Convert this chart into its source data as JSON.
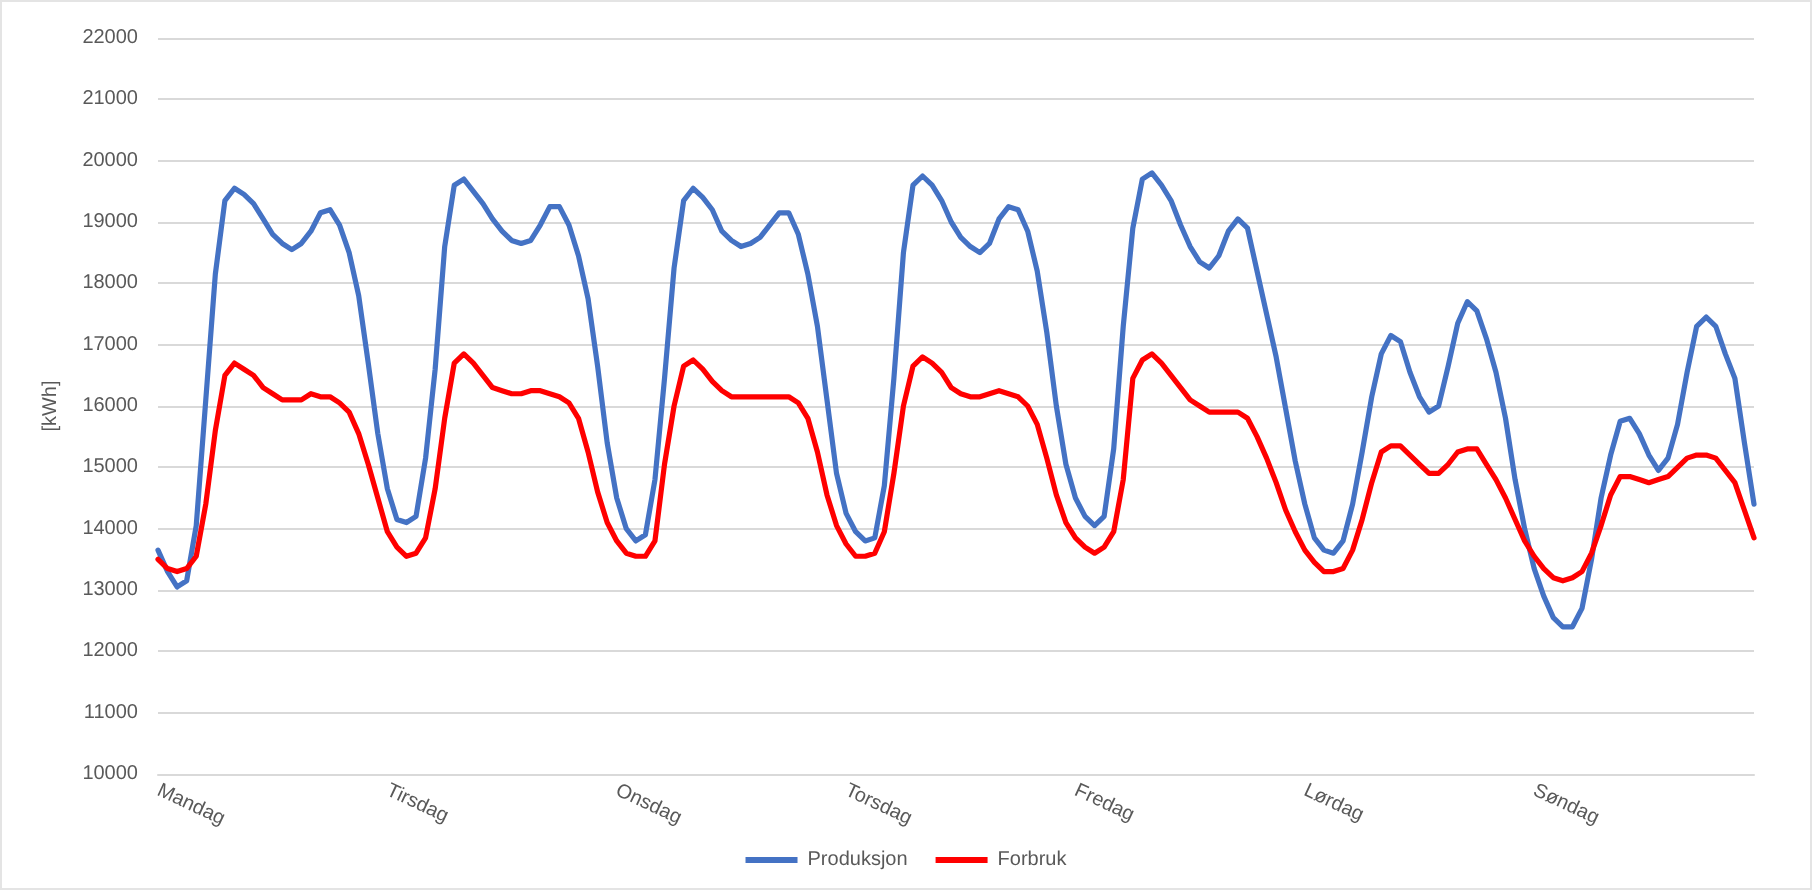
{
  "chart_data": {
    "type": "line",
    "ylabel": "[kWh]",
    "legend": "bottom",
    "grid": "y",
    "marker": "none",
    "ylim": [
      10000,
      22000
    ],
    "yticks": [
      10000,
      11000,
      12000,
      13000,
      14000,
      15000,
      16000,
      17000,
      18000,
      19000,
      20000,
      21000,
      22000
    ],
    "categories": [
      "Mandag",
      null,
      null,
      null,
      null,
      null,
      null,
      null,
      null,
      null,
      null,
      null,
      null,
      null,
      null,
      null,
      null,
      null,
      null,
      null,
      null,
      null,
      null,
      null,
      "Tirsdag",
      null,
      null,
      null,
      null,
      null,
      null,
      null,
      null,
      null,
      null,
      null,
      null,
      null,
      null,
      null,
      null,
      null,
      null,
      null,
      null,
      null,
      null,
      null,
      "Onsdag",
      null,
      null,
      null,
      null,
      null,
      null,
      null,
      null,
      null,
      null,
      null,
      null,
      null,
      null,
      null,
      null,
      null,
      null,
      null,
      null,
      null,
      null,
      null,
      "Torsdag",
      null,
      null,
      null,
      null,
      null,
      null,
      null,
      null,
      null,
      null,
      null,
      null,
      null,
      null,
      null,
      null,
      null,
      null,
      null,
      null,
      null,
      null,
      null,
      "Fredag",
      null,
      null,
      null,
      null,
      null,
      null,
      null,
      null,
      null,
      null,
      null,
      null,
      null,
      null,
      null,
      null,
      null,
      null,
      null,
      null,
      null,
      null,
      null,
      "Lørdag",
      null,
      null,
      null,
      null,
      null,
      null,
      null,
      null,
      null,
      null,
      null,
      null,
      null,
      null,
      null,
      null,
      null,
      null,
      null,
      null,
      null,
      null,
      null,
      "Søndag",
      null,
      null,
      null,
      null,
      null,
      null,
      null,
      null,
      null,
      null,
      null,
      null,
      null,
      null,
      null,
      null,
      null,
      null,
      null,
      null,
      null,
      null,
      null
    ],
    "series": [
      {
        "name": "Produksjon",
        "color": "#4472c4",
        "values": [
          13650,
          13300,
          13050,
          13150,
          14050,
          16100,
          18150,
          19350,
          19550,
          19450,
          19300,
          19050,
          18800,
          18650,
          18550,
          18650,
          18850,
          19150,
          19200,
          18950,
          18500,
          17800,
          16700,
          15550,
          14650,
          14150,
          14100,
          14200,
          15150,
          16600,
          18600,
          19600,
          19700,
          19500,
          19300,
          19050,
          18850,
          18700,
          18650,
          18700,
          18950,
          19250,
          19250,
          18950,
          18450,
          17750,
          16650,
          15400,
          14500,
          14000,
          13800,
          13900,
          14800,
          16450,
          18250,
          19350,
          19550,
          19400,
          19200,
          18850,
          18700,
          18600,
          18650,
          18750,
          18950,
          19150,
          19150,
          18800,
          18150,
          17300,
          16100,
          14900,
          14250,
          13950,
          13800,
          13850,
          14700,
          16450,
          18500,
          19600,
          19750,
          19600,
          19350,
          19000,
          18750,
          18600,
          18500,
          18650,
          19050,
          19250,
          19200,
          18850,
          18200,
          17200,
          16000,
          15050,
          14500,
          14200,
          14050,
          14200,
          15300,
          17300,
          18900,
          19700,
          19800,
          19600,
          19350,
          18950,
          18600,
          18350,
          18250,
          18450,
          18850,
          19050,
          18900,
          18200,
          17500,
          16800,
          15950,
          15100,
          14400,
          13850,
          13650,
          13600,
          13800,
          14400,
          15250,
          16150,
          16850,
          17150,
          17050,
          16550,
          16150,
          15900,
          16000,
          16650,
          17350,
          17700,
          17550,
          17100,
          16550,
          15800,
          14800,
          14000,
          13350,
          12900,
          12550,
          12400,
          12400,
          12700,
          13500,
          14500,
          15200,
          15750,
          15800,
          15550,
          15200,
          14950,
          15150,
          15700,
          16550,
          17300,
          17450,
          17300,
          16850,
          16450,
          15400,
          14400
        ]
      },
      {
        "name": "Forbruk",
        "color": "#ff0000",
        "values": [
          13500,
          13350,
          13300,
          13350,
          13550,
          14400,
          15600,
          16500,
          16700,
          16600,
          16500,
          16300,
          16200,
          16100,
          16100,
          16100,
          16200,
          16150,
          16150,
          16050,
          15900,
          15550,
          15050,
          14500,
          13950,
          13700,
          13550,
          13600,
          13850,
          14650,
          15800,
          16700,
          16850,
          16700,
          16500,
          16300,
          16250,
          16200,
          16200,
          16250,
          16250,
          16200,
          16150,
          16050,
          15800,
          15250,
          14600,
          14100,
          13800,
          13600,
          13550,
          13550,
          13800,
          15050,
          16000,
          16650,
          16750,
          16600,
          16400,
          16250,
          16150,
          16150,
          16150,
          16150,
          16150,
          16150,
          16150,
          16050,
          15800,
          15250,
          14550,
          14050,
          13750,
          13550,
          13550,
          13600,
          13950,
          14900,
          16000,
          16650,
          16800,
          16700,
          16550,
          16300,
          16200,
          16150,
          16150,
          16200,
          16250,
          16200,
          16150,
          16000,
          15700,
          15150,
          14550,
          14100,
          13850,
          13700,
          13600,
          13700,
          13950,
          14800,
          16450,
          16750,
          16850,
          16700,
          16500,
          16300,
          16100,
          16000,
          15900,
          15900,
          15900,
          15900,
          15800,
          15500,
          15150,
          14750,
          14300,
          13950,
          13650,
          13450,
          13300,
          13300,
          13350,
          13650,
          14150,
          14750,
          15250,
          15350,
          15350,
          15200,
          15050,
          14900,
          14900,
          15050,
          15250,
          15300,
          15300,
          15050,
          14800,
          14500,
          14150,
          13800,
          13550,
          13350,
          13200,
          13150,
          13200,
          13300,
          13600,
          14050,
          14550,
          14850,
          14850,
          14800,
          14750,
          14800,
          14850,
          15000,
          15150,
          15200,
          15200,
          15150,
          14950,
          14750,
          14300,
          13850
        ]
      }
    ]
  }
}
